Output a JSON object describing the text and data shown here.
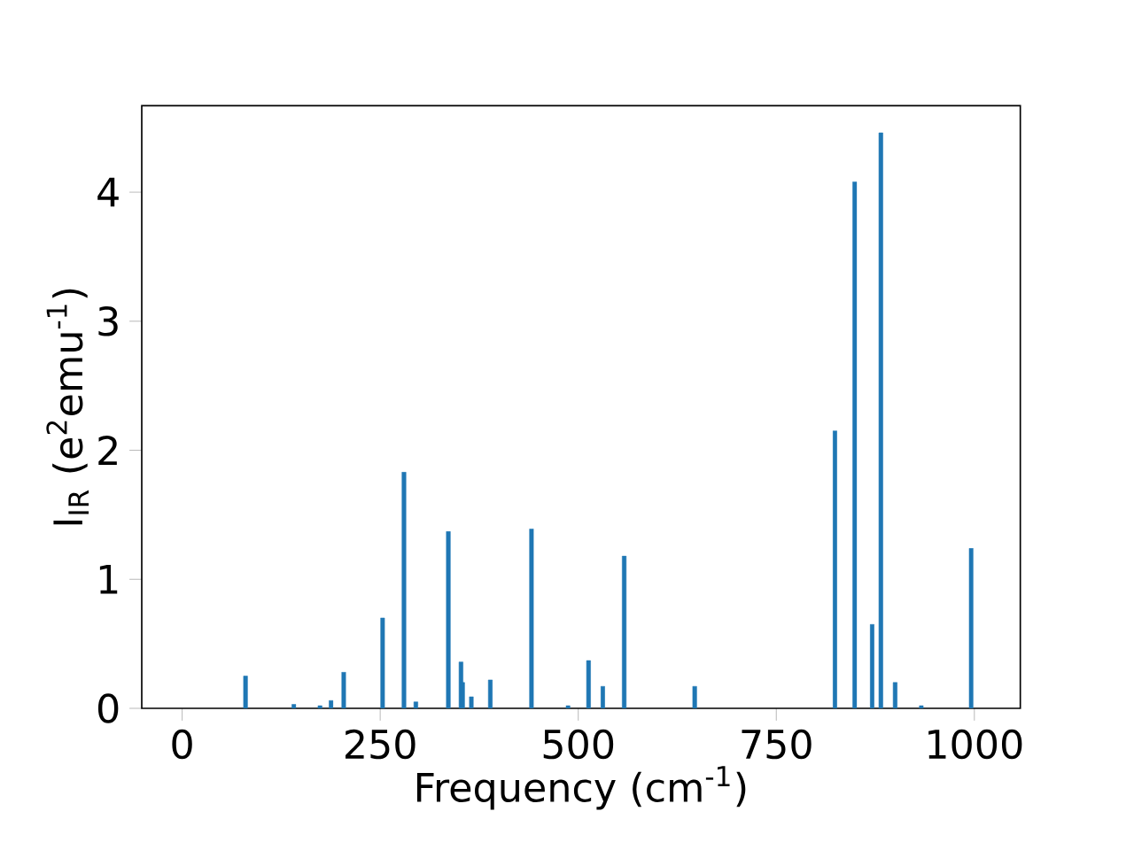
{
  "chart_data": {
    "type": "bar",
    "xlabel": "Frequency (cm$^{-1}$)",
    "ylabel": "I$_{IR}$ (e$^{2}$emu$^{-1}$)",
    "x": [
      80,
      141,
      174,
      188,
      204,
      253,
      280,
      295,
      336,
      352,
      354,
      365,
      389,
      441,
      487,
      513,
      531,
      558,
      647,
      824,
      849,
      871,
      882,
      900,
      933,
      996
    ],
    "values": [
      0.25,
      0.03,
      0.02,
      0.06,
      0.28,
      0.7,
      1.83,
      0.05,
      1.37,
      0.36,
      0.2,
      0.09,
      0.22,
      1.39,
      0.02,
      0.37,
      0.17,
      1.18,
      0.17,
      2.15,
      4.08,
      0.65,
      4.46,
      0.2,
      0.02,
      1.24
    ],
    "color": "#1f77b4",
    "xlim": [
      -51,
      1058
    ],
    "ylim": [
      0,
      4.67
    ],
    "xticks": [
      0,
      250,
      500,
      750,
      1000
    ],
    "yticks": [
      0,
      1,
      2,
      3,
      4
    ]
  }
}
